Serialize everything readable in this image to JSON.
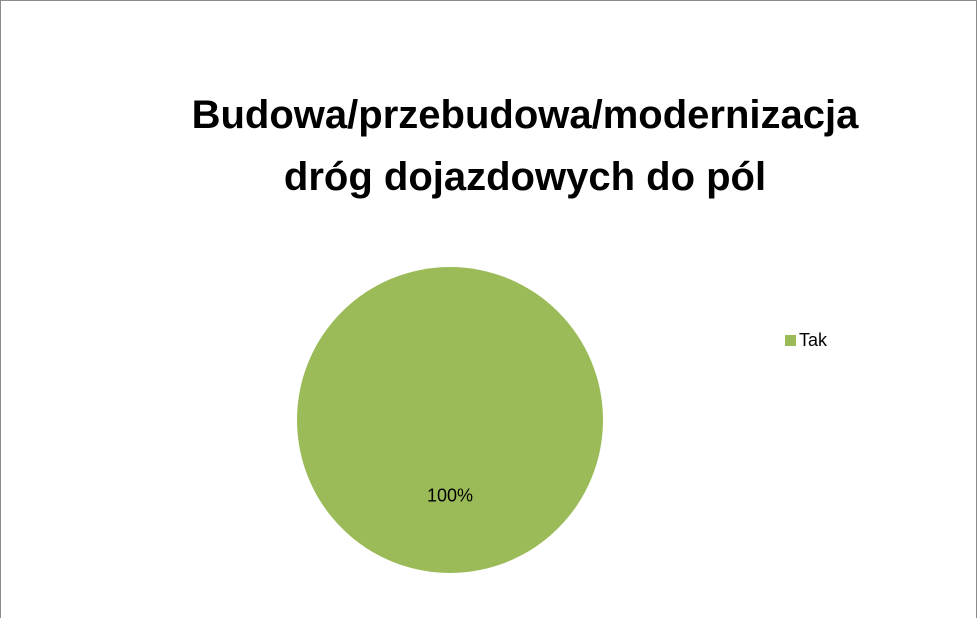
{
  "chart_data": {
    "type": "pie",
    "title": "Budowa/przebudowa/modernizacja dróg dojazdowych do pól",
    "categories": [
      "Tak"
    ],
    "values": [
      100
    ],
    "value_labels": [
      "100%"
    ],
    "colors": [
      "#9bbb59"
    ],
    "legend": "right"
  }
}
